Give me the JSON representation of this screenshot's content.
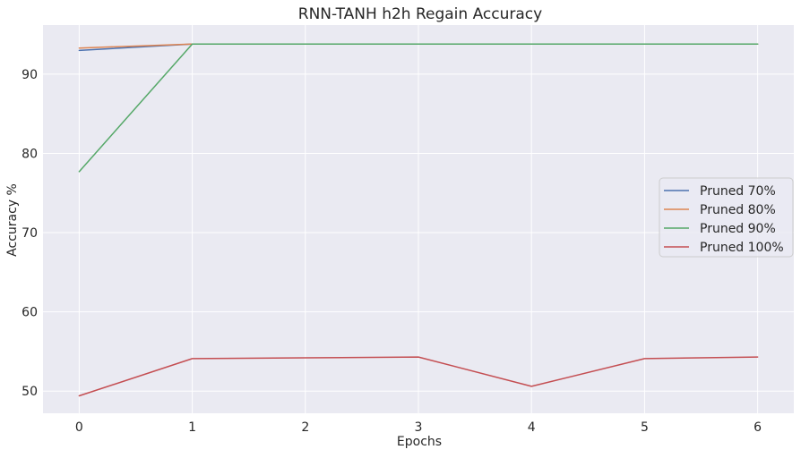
{
  "chart_data": {
    "type": "line",
    "title": "RNN-TANH h2h Regain Accuracy",
    "xlabel": "Epochs",
    "ylabel": "Accuracy %",
    "x": [
      0,
      1,
      2,
      3,
      4,
      5,
      6
    ],
    "xlim": [
      -0.32,
      6.32
    ],
    "ylim": [
      47.2,
      96.2
    ],
    "xticks": [
      0,
      1,
      2,
      3,
      4,
      5,
      6
    ],
    "yticks": [
      50,
      60,
      70,
      80,
      90
    ],
    "grid": true,
    "legend_position": "center-right",
    "series": [
      {
        "name": "Pruned 70%",
        "color": "#4c72b0",
        "values": [
          93.0,
          93.8,
          93.8,
          93.8,
          93.8,
          93.8,
          93.8
        ]
      },
      {
        "name": "Pruned 80%",
        "color": "#dd8452",
        "values": [
          93.3,
          93.8,
          93.8,
          93.8,
          93.8,
          93.8,
          93.8
        ]
      },
      {
        "name": "Pruned 90%",
        "color": "#55a868",
        "values": [
          77.7,
          93.8,
          93.8,
          93.8,
          93.8,
          93.8,
          93.8
        ]
      },
      {
        "name": "Pruned 100%",
        "color": "#c44e52",
        "values": [
          49.4,
          54.1,
          54.2,
          54.3,
          50.6,
          54.1,
          54.3
        ]
      }
    ]
  },
  "style": {
    "plot_background": "#eaeaf2",
    "grid_color": "#ffffff",
    "text_color": "#262626"
  }
}
